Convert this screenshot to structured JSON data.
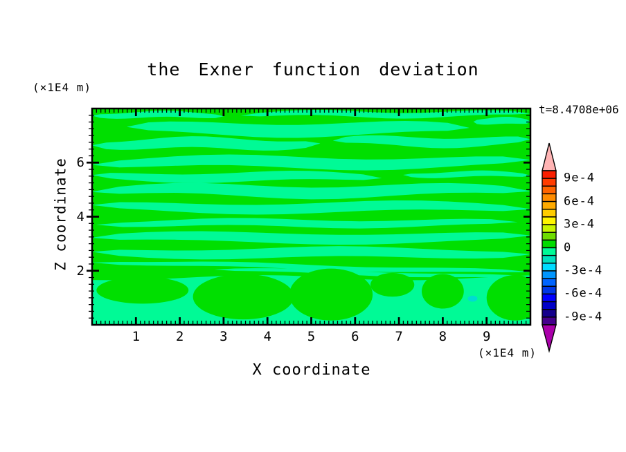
{
  "title": "the Exner function deviation",
  "annotations": {
    "time": "t=8.4708e+06"
  },
  "x_axis": {
    "title": "X coordinate",
    "unit_label": "(×1E4 m)",
    "range": [
      0,
      10
    ],
    "major_ticks": [
      1,
      2,
      3,
      4,
      5,
      6,
      7,
      8,
      9
    ],
    "minor_step": 0.1
  },
  "z_axis": {
    "title": "Z coordinate",
    "unit_label": "(×1E4 m)",
    "range": [
      0,
      8
    ],
    "major_ticks": [
      2,
      4,
      6
    ],
    "minor_step": 0.25
  },
  "colorbar": {
    "labels": [
      "9e-4",
      "6e-4",
      "3e-4",
      "0",
      "-3e-4",
      "-6e-4",
      "-9e-4"
    ],
    "segment_colors_top_to_bottom": [
      "#fa1e00",
      "#ff3c00",
      "#ff6400",
      "#ff8c00",
      "#ffaa00",
      "#ffcd00",
      "#fff500",
      "#c8f500",
      "#6edc00",
      "#00dc00",
      "#00fa96",
      "#00e1be",
      "#00dcff",
      "#0096ff",
      "#0064ff",
      "#0037e6",
      "#0000ff",
      "#0000c8",
      "#14008c",
      "#46008c"
    ],
    "over_color": "#ffb4b4",
    "under_color": "#aa00aa",
    "level_max": 0.001,
    "level_min": -0.001,
    "interval": 0.0001
  },
  "chart_data": {
    "type": "heatmap",
    "subtype": "filled-contour",
    "title": "the Exner function deviation",
    "xlabel": "X coordinate",
    "ylabel": "Z coordinate",
    "x_unit": "(×1E4 m)",
    "z_unit": "(×1E4 m)",
    "x_range": [
      0,
      10
    ],
    "z_range": [
      0,
      8
    ],
    "time_annotation": "t=8.4708e+06",
    "contour_interval": 0.0001,
    "labeled_levels": [
      0.0009,
      0.0006,
      0.0003,
      0,
      -0.0003,
      -0.0006,
      -0.0009
    ],
    "field_summary": "Deviation stays within about ±1e-4: horizontally layered alternating bands of 0..+1e-4 (green) and -1e-4..0 (spring green); broad spring-green layer below z≈1.7 with green tongues descending, one small -1e-4..-2e-4 pocket near x=8.7, z=0.95",
    "colors": {
      "positive_band": "#00df00",
      "negative_band": "#00fa96",
      "speck": "#00dcd2"
    },
    "bands": [
      {
        "cy": 0.03,
        "h": 0.014,
        "x0": 0.0,
        "x1": 0.3,
        "amp": 0.006,
        "ph": 0.5,
        "fr": 1.2
      },
      {
        "cy": 0.026,
        "h": 0.013,
        "x0": 0.34,
        "x1": 1.0,
        "amp": 0.008,
        "ph": 2.2,
        "fr": 1.6
      },
      {
        "cy": 0.094,
        "h": 0.03,
        "x0": 0.08,
        "x1": 0.86,
        "amp": 0.012,
        "ph": 4.0,
        "fr": 1.3
      },
      {
        "cy": 0.058,
        "h": 0.016,
        "x0": 0.87,
        "x1": 1.0,
        "amp": 0.004,
        "ph": 1.0,
        "fr": 1.0
      },
      {
        "cy": 0.163,
        "h": 0.025,
        "x0": 0.0,
        "x1": 0.52,
        "amp": 0.01,
        "ph": 0.8,
        "fr": 1.4
      },
      {
        "cy": 0.152,
        "h": 0.022,
        "x0": 0.55,
        "x1": 1.0,
        "amp": 0.01,
        "ph": 3.5,
        "fr": 1.2
      },
      {
        "cy": 0.249,
        "h": 0.026,
        "x0": 0.0,
        "x1": 1.0,
        "amp": 0.012,
        "ph": 1.9,
        "fr": 1.5
      },
      {
        "cy": 0.316,
        "h": 0.021,
        "x0": 0.0,
        "x1": 0.66,
        "amp": 0.009,
        "ph": 5.1,
        "fr": 1.3
      },
      {
        "cy": 0.305,
        "h": 0.013,
        "x0": 0.71,
        "x1": 1.0,
        "amp": 0.006,
        "ph": 0.3,
        "fr": 1.1
      },
      {
        "cy": 0.38,
        "h": 0.027,
        "x0": 0.0,
        "x1": 1.0,
        "amp": 0.013,
        "ph": 2.7,
        "fr": 1.6
      },
      {
        "cy": 0.457,
        "h": 0.023,
        "x0": 0.0,
        "x1": 1.0,
        "amp": 0.011,
        "ph": 4.6,
        "fr": 1.4
      },
      {
        "cy": 0.53,
        "h": 0.017,
        "x0": 0.01,
        "x1": 0.97,
        "amp": 0.008,
        "ph": 1.2,
        "fr": 1.7
      },
      {
        "cy": 0.597,
        "h": 0.023,
        "x0": 0.0,
        "x1": 1.0,
        "amp": 0.01,
        "ph": 3.1,
        "fr": 1.3
      },
      {
        "cy": 0.668,
        "h": 0.023,
        "x0": 0.0,
        "x1": 1.0,
        "amp": 0.009,
        "ph": 5.6,
        "fr": 1.5
      },
      {
        "cy": 0.733,
        "h": 0.011,
        "x0": 0.0,
        "x1": 1.0,
        "amp": 0.005,
        "ph": 0.9,
        "fr": 1.8,
        "tilt": 0.05
      },
      {
        "cy": 0.762,
        "h": 0.009,
        "x0": 0.28,
        "x1": 1.0,
        "amp": 0.004,
        "ph": 2.4,
        "fr": 1.5,
        "tilt": 0.04
      }
    ],
    "bottom_region": {
      "y0": 0.782,
      "amp": 0.012,
      "ph": 1.1,
      "fr": 1.5
    },
    "green_blobs": [
      {
        "cx": 0.115,
        "cy": 0.84,
        "rx": 0.105,
        "ry": 0.062
      },
      {
        "cx": 0.345,
        "cy": 0.87,
        "rx": 0.115,
        "ry": 0.105
      },
      {
        "cx": 0.545,
        "cy": 0.86,
        "rx": 0.095,
        "ry": 0.12
      },
      {
        "cx": 0.685,
        "cy": 0.815,
        "rx": 0.05,
        "ry": 0.055
      },
      {
        "cx": 0.8,
        "cy": 0.845,
        "rx": 0.048,
        "ry": 0.08
      },
      {
        "cx": 0.965,
        "cy": 0.875,
        "rx": 0.065,
        "ry": 0.105
      }
    ],
    "speck": {
      "cx": 0.868,
      "cy": 0.879,
      "rx": 0.011,
      "ry": 0.014
    }
  }
}
